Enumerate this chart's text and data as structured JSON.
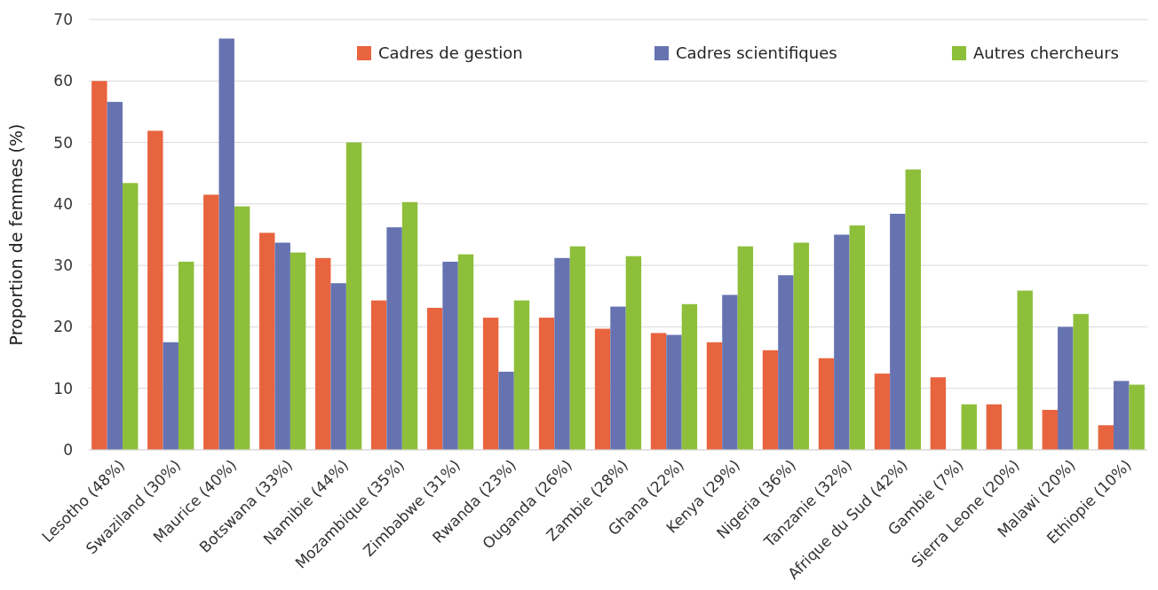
{
  "chart_data": {
    "type": "bar",
    "ylabel": "Proportion de femmes (%)",
    "categories": [
      "Lesotho (48%)",
      "Swaziland (30%)",
      "Maurice (40%)",
      "Botswana (33%)",
      "Namibie (44%)",
      "Mozambique (35%)",
      "Zimbabwe (31%)",
      "Rwanda (23%)",
      "Ouganda (26%)",
      "Zambie (28%)",
      "Ghana (22%)",
      "Kenya (29%)",
      "Nigeria (36%)",
      "Tanzanie (32%)",
      "Afrique du Sud (42%)",
      "Gambie (7%)",
      "Sierra Leone (20%)",
      "Malawi (20%)",
      "Ethiopie (10%)"
    ],
    "series": [
      {
        "name": "Cadres de gestion",
        "color": "#e8643f",
        "values": [
          60,
          51.9,
          41.5,
          35.3,
          31.2,
          24.3,
          23.1,
          21.5,
          21.5,
          19.7,
          19,
          17.5,
          16.2,
          14.9,
          12.4,
          11.8,
          7.4,
          6.5,
          4
        ]
      },
      {
        "name": "Cadres scientifiques",
        "color": "#6673b0",
        "values": [
          56.6,
          17.5,
          66.9,
          33.7,
          27.1,
          36.2,
          30.6,
          12.7,
          31.2,
          23.3,
          18.7,
          25.2,
          28.4,
          35,
          38.4,
          null,
          null,
          20,
          11.2
        ]
      },
      {
        "name": "Autres chercheurs",
        "color": "#8dbf3a",
        "values": [
          43.4,
          30.6,
          39.6,
          32.1,
          50,
          40.3,
          31.8,
          24.3,
          33.1,
          31.5,
          23.7,
          33.1,
          33.7,
          36.5,
          45.6,
          7.4,
          25.9,
          22.1,
          10.6
        ]
      }
    ],
    "ylim": [
      0,
      70
    ],
    "yticks": [
      0,
      10,
      20,
      30,
      40,
      50,
      60,
      70
    ],
    "grid": "y",
    "legend": "top right"
  }
}
